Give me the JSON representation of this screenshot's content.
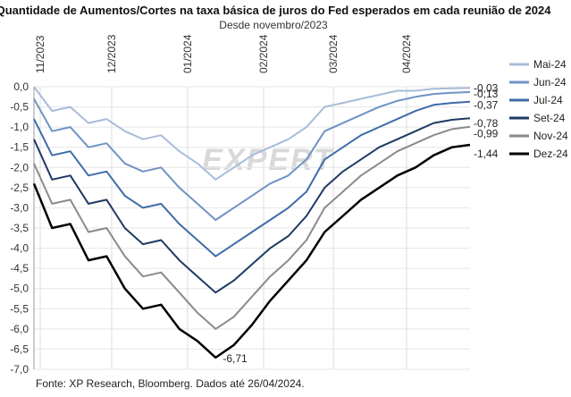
{
  "chart_data": {
    "type": "line",
    "title": "Quantidade de Aumentos/Cortes na taxa básica de juros do Fed esperados em cada reunião de 2024",
    "subtitle": "Desde novembro/2023",
    "source": "Fonte: XP Research, Bloomberg. Dados até 26/04/2024.",
    "watermark": "EXPERT",
    "min_annotation": "-6,71",
    "x_ticks": [
      "11/2023",
      "12/2023",
      "01/2024",
      "02/2024",
      "03/2024",
      "04/2024"
    ],
    "y_ticks": [
      "0,0",
      "-0,5",
      "-1,0",
      "-1,5",
      "-2,0",
      "-2,5",
      "-3,0",
      "-3,5",
      "-4,0",
      "-4,5",
      "-5,0",
      "-5,5",
      "-6,0",
      "-6,5",
      "-7,0"
    ],
    "ylim": [
      -7.0,
      0.0
    ],
    "n_points": 25,
    "series": [
      {
        "name": "Mai-24",
        "end_label": "-0,03",
        "color": "#a8bcd9",
        "width": 2,
        "values": [
          0.0,
          -0.6,
          -0.5,
          -0.9,
          -0.8,
          -1.1,
          -1.3,
          -1.2,
          -1.6,
          -1.9,
          -2.3,
          -2.0,
          -1.7,
          -1.5,
          -1.3,
          -1.0,
          -0.5,
          -0.4,
          -0.3,
          -0.2,
          -0.1,
          -0.1,
          -0.05,
          -0.04,
          -0.03
        ]
      },
      {
        "name": "Jun-24",
        "end_label": "-0,13",
        "color": "#6f93c4",
        "width": 2,
        "values": [
          -0.3,
          -1.1,
          -1.0,
          -1.5,
          -1.4,
          -1.9,
          -2.1,
          -2.0,
          -2.5,
          -2.9,
          -3.3,
          -3.0,
          -2.7,
          -2.4,
          -2.2,
          -1.8,
          -1.1,
          -0.9,
          -0.7,
          -0.5,
          -0.35,
          -0.25,
          -0.18,
          -0.15,
          -0.13
        ]
      },
      {
        "name": "Jul-24",
        "end_label": "-0,37",
        "color": "#3f6ba8",
        "width": 2,
        "values": [
          -0.8,
          -1.7,
          -1.6,
          -2.2,
          -2.1,
          -2.7,
          -3.0,
          -2.9,
          -3.4,
          -3.8,
          -4.2,
          -3.9,
          -3.6,
          -3.3,
          -3.0,
          -2.6,
          -1.8,
          -1.5,
          -1.2,
          -1.0,
          -0.8,
          -0.6,
          -0.45,
          -0.4,
          -0.37
        ]
      },
      {
        "name": "Set-24",
        "end_label": "-0,78",
        "color": "#1f3a63",
        "width": 2,
        "values": [
          -1.3,
          -2.3,
          -2.2,
          -2.9,
          -2.8,
          -3.5,
          -3.9,
          -3.8,
          -4.3,
          -4.7,
          -5.1,
          -4.8,
          -4.4,
          -4.0,
          -3.7,
          -3.2,
          -2.5,
          -2.1,
          -1.8,
          -1.5,
          -1.3,
          -1.1,
          -0.9,
          -0.82,
          -0.78
        ]
      },
      {
        "name": "Nov-24",
        "end_label": "-0,99",
        "color": "#8a8a8a",
        "width": 2,
        "values": [
          -1.9,
          -2.9,
          -2.8,
          -3.6,
          -3.5,
          -4.2,
          -4.7,
          -4.6,
          -5.1,
          -5.6,
          -6.0,
          -5.7,
          -5.2,
          -4.7,
          -4.3,
          -3.8,
          -3.0,
          -2.6,
          -2.2,
          -1.9,
          -1.6,
          -1.4,
          -1.2,
          -1.05,
          -0.99
        ]
      },
      {
        "name": "Dez-24",
        "end_label": "-1,44",
        "color": "#000000",
        "width": 2.5,
        "values": [
          -2.4,
          -3.5,
          -3.4,
          -4.3,
          -4.2,
          -5.0,
          -5.5,
          -5.4,
          -6.0,
          -6.3,
          -6.71,
          -6.4,
          -5.9,
          -5.3,
          -4.8,
          -4.3,
          -3.6,
          -3.2,
          -2.8,
          -2.5,
          -2.2,
          -2.0,
          -1.7,
          -1.5,
          -1.44
        ]
      }
    ]
  }
}
